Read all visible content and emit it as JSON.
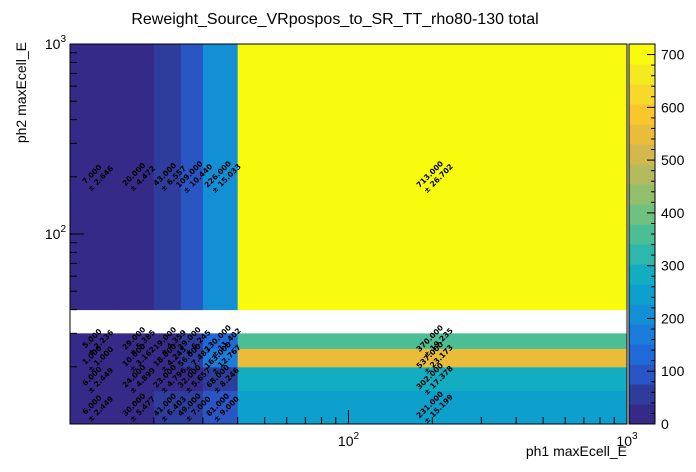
{
  "chart_data": {
    "type": "heatmap",
    "title": "Reweight_Source_VRpospos_to_SR_TT_rho80-130 total",
    "xlabel": "ph1 maxEcell_E",
    "ylabel": "ph2 maxEcell_E",
    "x_scale": "log",
    "y_scale": "log",
    "xlim": [
      10,
      1000
    ],
    "ylim": [
      10,
      1000
    ],
    "x_tick_labels": [
      "10^2",
      "10^3"
    ],
    "y_tick_labels": [
      "10^2",
      "10^3"
    ],
    "colorbar": {
      "range": [
        0,
        720
      ],
      "ticks": [
        0,
        100,
        200,
        300,
        400,
        500,
        600,
        700
      ]
    },
    "x_bins": [
      10,
      15,
      20,
      25,
      30,
      40,
      1000
    ],
    "y_bins": [
      10,
      15,
      20,
      25,
      30,
      40,
      1000
    ],
    "cells": [
      {
        "xi": 0,
        "yi": 0,
        "v": 6,
        "err": "2.449",
        "label": "6.000",
        "err_label": "± 2.449"
      },
      {
        "xi": 1,
        "yi": 0,
        "v": 30,
        "err": "5.477",
        "label": "30.000",
        "err_label": "± 5.477"
      },
      {
        "xi": 2,
        "yi": 0,
        "v": 41,
        "err": "6.403",
        "label": "41.000",
        "err_label": "± 6.403"
      },
      {
        "xi": 3,
        "yi": 0,
        "v": 49,
        "err": "7.000",
        "label": "49.000",
        "err_label": "± 7.000"
      },
      {
        "xi": 4,
        "yi": 0,
        "v": 81,
        "err": "9.000",
        "label": "81.000",
        "err_label": "± 9.000"
      },
      {
        "xi": 5,
        "yi": 0,
        "v": 231,
        "err": "15.199",
        "label": "231.000",
        "err_label": "± 15.199"
      },
      {
        "xi": 0,
        "yi": 1,
        "v": 6,
        "err": "2.449",
        "label": "6.000",
        "err_label": "± 2.449"
      },
      {
        "xi": 1,
        "yi": 1,
        "v": 24,
        "err": "4.899",
        "label": "24.000",
        "err_label": "± 4.899"
      },
      {
        "xi": 2,
        "yi": 1,
        "v": 23,
        "err": "4.796",
        "label": "23.000",
        "err_label": "± 4.796"
      },
      {
        "xi": 3,
        "yi": 1,
        "v": 32,
        "err": "5.657",
        "label": "32.000",
        "err_label": "± 5.657"
      },
      {
        "xi": 4,
        "yi": 1,
        "v": 68,
        "err": "8.246",
        "label": "68.000",
        "err_label": "± 8.246"
      },
      {
        "xi": 5,
        "yi": 1,
        "v": 302,
        "err": "17.378",
        "label": "302.000",
        "err_label": "± 17.378"
      },
      {
        "xi": 0,
        "yi": 2,
        "v": 1,
        "err": "1.000",
        "label": "1.000",
        "err_label": "± 1.000"
      },
      {
        "xi": 1,
        "yi": 2,
        "v": 10,
        "err": "3.162",
        "label": "10.000",
        "err_label": "± 3.162"
      },
      {
        "xi": 2,
        "yi": 2,
        "v": 18,
        "err": "4.243",
        "label": "18.000",
        "err_label": "± 4.243"
      },
      {
        "xi": 3,
        "yi": 2,
        "v": 56,
        "err": "7.483",
        "label": "56.000",
        "err_label": "± 7.483"
      },
      {
        "xi": 4,
        "yi": 2,
        "v": 163,
        "err": "12.767",
        "label": "163.000",
        "err_label": "± 12.767"
      },
      {
        "xi": 5,
        "yi": 2,
        "v": 537,
        "err": "23.173",
        "label": "537.000",
        "err_label": "± 23.173"
      },
      {
        "xi": 0,
        "yi": 3,
        "v": 5,
        "err": "2.236",
        "label": "5.000",
        "err_label": "± 2.236"
      },
      {
        "xi": 1,
        "yi": 3,
        "v": 29,
        "err": "5.385",
        "label": "29.000",
        "err_label": "± 5.385"
      },
      {
        "xi": 2,
        "yi": 3,
        "v": 19,
        "err": "4.359",
        "label": "19.000",
        "err_label": "± 4.359"
      },
      {
        "xi": 3,
        "yi": 3,
        "v": 39,
        "err": "6.245",
        "label": "39.000",
        "err_label": "± 6.245"
      },
      {
        "xi": 4,
        "yi": 3,
        "v": 130,
        "err": "11.402",
        "label": "130.000",
        "err_label": "± 11.402"
      },
      {
        "xi": 5,
        "yi": 3,
        "v": 370,
        "err": "19.235",
        "label": "370.000",
        "err_label": "± 19.235"
      },
      {
        "xi": 0,
        "yi": 5,
        "v": 7,
        "err": "2.646",
        "label": "7.000",
        "err_label": "± 2.646"
      },
      {
        "xi": 1,
        "yi": 5,
        "v": 20,
        "err": "4.472",
        "label": "20.000",
        "err_label": "± 4.472"
      },
      {
        "xi": 2,
        "yi": 5,
        "v": 43,
        "err": "6.557",
        "label": "43.000",
        "err_label": "± 6.557"
      },
      {
        "xi": 3,
        "yi": 5,
        "v": 109,
        "err": "10.440",
        "label": "109.000",
        "err_label": "± 10.440"
      },
      {
        "xi": 4,
        "yi": 5,
        "v": 226,
        "err": "15.033",
        "label": "226.000",
        "err_label": "± 15.033"
      },
      {
        "xi": 5,
        "yi": 5,
        "v": 713,
        "err": "26.702",
        "label": "713.000",
        "err_label": "± 26.702"
      }
    ]
  },
  "colors": {
    "palette": [
      "#352a87",
      "#2e3d9c",
      "#2a55c4",
      "#1f6ad8",
      "#1a7ddc",
      "#1390d5",
      "#0da0cc",
      "#12adc0",
      "#2eb7ab",
      "#4cbe96",
      "#6fc17f",
      "#92bf6c",
      "#b4bb5d",
      "#d2b84d",
      "#e9bd3a",
      "#fac62e",
      "#f7d92a",
      "#f5ea1f",
      "#f9fb0e"
    ]
  }
}
